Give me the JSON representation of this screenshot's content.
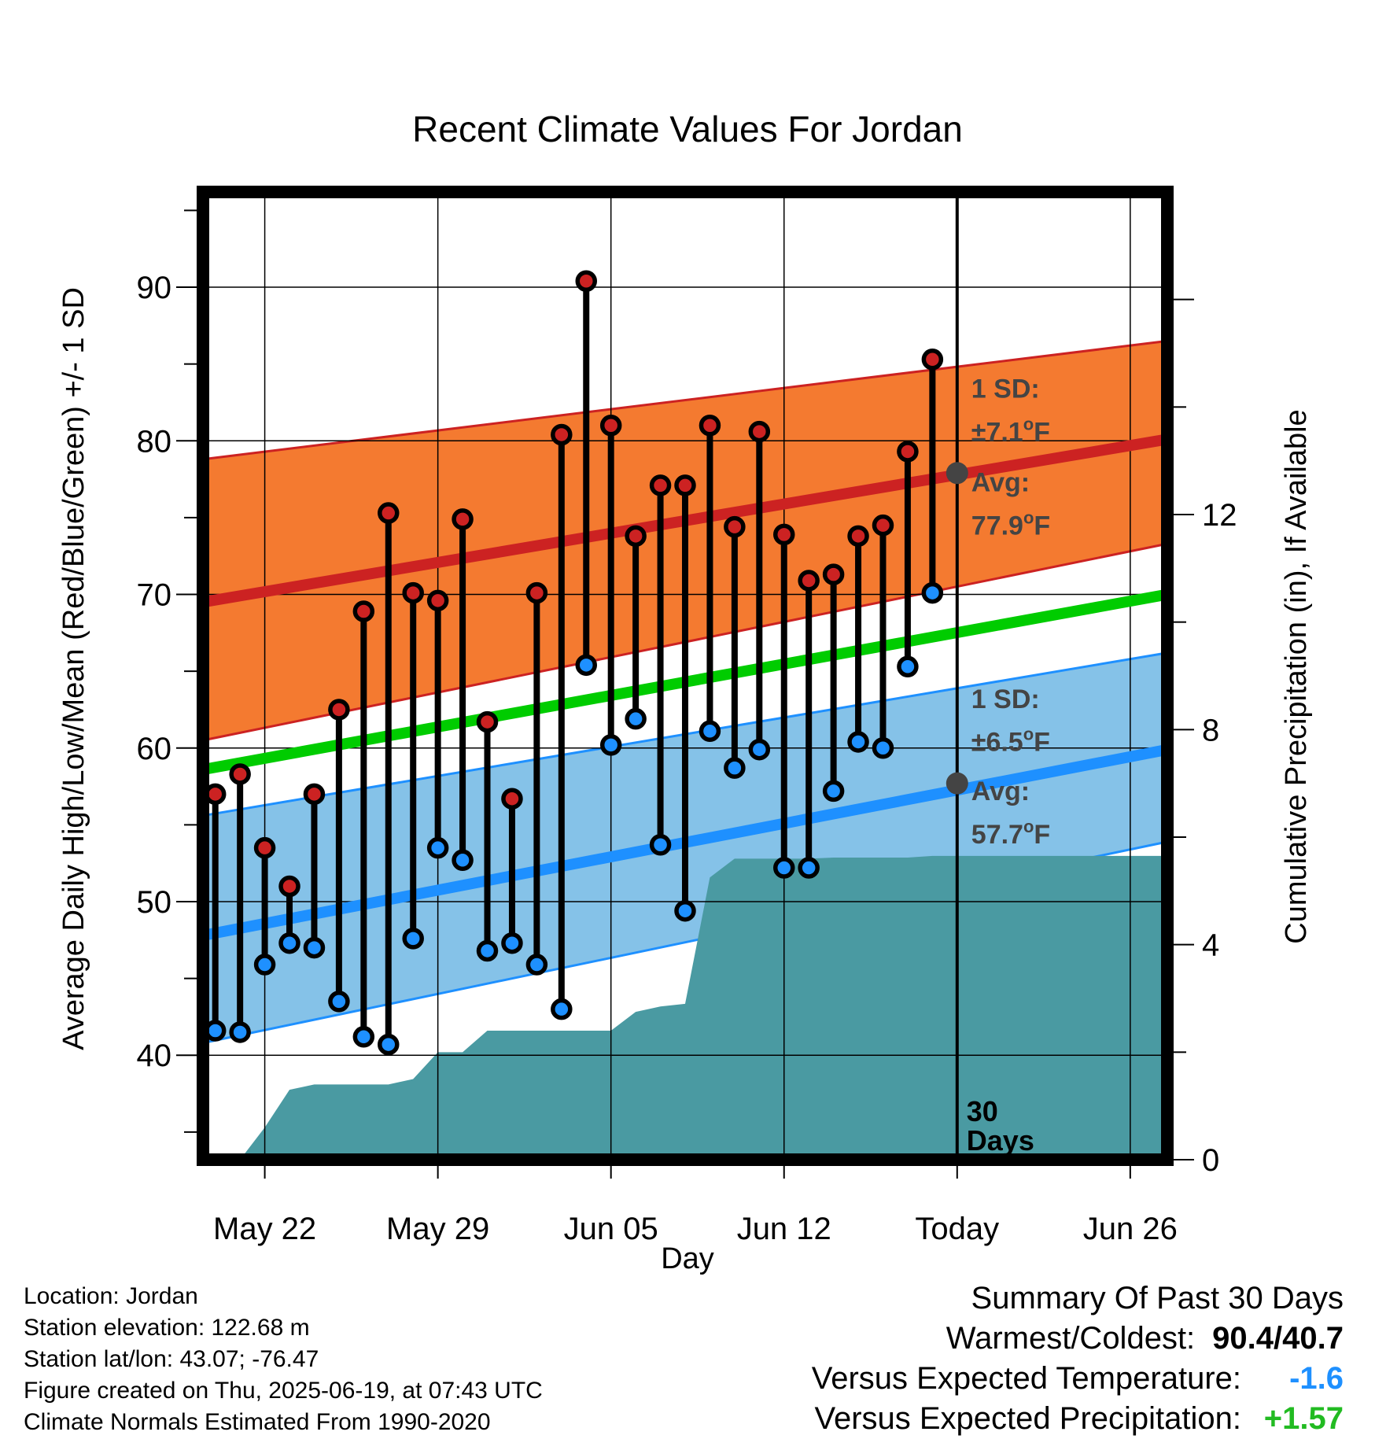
{
  "chart_data": {
    "type": "line",
    "title": "Recent Climate Values For Jordan",
    "xlabel": "Day",
    "ylabel": "Average Daily High/Low/Mean (Red/Blue/Green) +/- 1 SD",
    "y2label": "Cumulative Precipitation (in), If Available",
    "x_tick_labels": [
      "May 22",
      "May 29",
      "Jun 05",
      "Jun 12",
      "Today",
      "Jun 26"
    ],
    "x_tick_days": [
      2,
      9,
      16,
      23,
      30,
      37
    ],
    "x_range_days": [
      -0.5,
      38.5
    ],
    "ylim": [
      33.2,
      96.2
    ],
    "y_ticks": [
      40,
      50,
      60,
      70,
      80,
      90
    ],
    "y2lim": [
      0,
      18
    ],
    "y2_ticks": [
      0,
      4,
      8,
      12
    ],
    "grid": true,
    "today_day": 30,
    "normals": {
      "high_mean": {
        "start": 69.5,
        "end": 80.1
      },
      "high_sd_band": {
        "lower_start": 60.5,
        "lower_end": 73.3,
        "upper_start": 78.8,
        "upper_end": 86.5
      },
      "mean": {
        "start": 58.6,
        "end": 70.0
      },
      "low_mean": {
        "start": 47.8,
        "end": 59.9
      },
      "low_sd_band": {
        "lower_start": 40.8,
        "lower_end": 53.9,
        "upper_start": 55.6,
        "upper_end": 66.2
      }
    },
    "series": [
      {
        "name": "High",
        "x": [
          0,
          1,
          2,
          3,
          4,
          5,
          6,
          7,
          8,
          9,
          10,
          11,
          12,
          13,
          14,
          15,
          16,
          17,
          18,
          19,
          20,
          21,
          22,
          23,
          24,
          25,
          26,
          27,
          28,
          29
        ],
        "values": [
          57.0,
          58.3,
          53.5,
          51.0,
          57.0,
          62.5,
          68.9,
          75.3,
          70.1,
          69.6,
          74.9,
          61.7,
          56.7,
          70.1,
          80.4,
          90.4,
          81.0,
          73.8,
          77.1,
          77.1,
          81.0,
          74.4,
          80.6,
          73.9,
          70.9,
          71.3,
          73.8,
          74.5,
          79.3,
          85.3
        ]
      },
      {
        "name": "Low",
        "x": [
          0,
          1,
          2,
          3,
          4,
          5,
          6,
          7,
          8,
          9,
          10,
          11,
          12,
          13,
          14,
          15,
          16,
          17,
          18,
          19,
          20,
          21,
          22,
          23,
          24,
          25,
          26,
          27,
          28,
          29
        ],
        "values": [
          41.6,
          41.5,
          45.9,
          47.3,
          47.0,
          43.5,
          41.2,
          40.7,
          47.6,
          53.5,
          52.7,
          46.8,
          47.3,
          45.9,
          43.0,
          65.4,
          60.2,
          61.9,
          53.7,
          49.4,
          61.1,
          58.7,
          59.9,
          52.2,
          52.2,
          57.2,
          60.4,
          60.0,
          65.3,
          70.1
        ]
      },
      {
        "name": "Cumulative Precipitation",
        "axis": "y2",
        "x": [
          0,
          1,
          2,
          3,
          4,
          5,
          6,
          7,
          8,
          9,
          10,
          11,
          12,
          13,
          14,
          15,
          16,
          17,
          18,
          19,
          20,
          21,
          22,
          23,
          24,
          25,
          26,
          27,
          28,
          29,
          30,
          38.5
        ],
        "values": [
          0.0,
          0.0,
          0.6,
          1.3,
          1.4,
          1.4,
          1.4,
          1.4,
          1.5,
          2.0,
          2.0,
          2.4,
          2.4,
          2.4,
          2.4,
          2.4,
          2.4,
          2.75,
          2.85,
          2.9,
          5.25,
          5.6,
          5.6,
          5.6,
          5.6,
          5.62,
          5.62,
          5.62,
          5.62,
          5.65,
          5.65,
          5.65
        ]
      }
    ],
    "annotations": {
      "high_sd_line1": "1 SD:",
      "high_sd_line2": "±7.1",
      "high_sd_unit": "F",
      "high_avg_line1": "Avg:",
      "high_avg_line2": "77.9",
      "high_avg_unit": "F",
      "low_sd_line1": "1 SD:",
      "low_sd_line2": "±6.5",
      "low_sd_unit": "F",
      "low_avg_line1": "Avg:",
      "low_avg_line2": "57.7",
      "low_avg_unit": "F",
      "deg_symbol": "o",
      "days_line1": "30",
      "days_line2": "Days",
      "high_avg_today": 77.9,
      "low_avg_today": 57.7
    },
    "colors": {
      "high_band": "#f47a30",
      "high_line": "#cc2222",
      "mean_line": "#00cc00",
      "low_band": "#85c2e8",
      "low_line": "#1e90ff",
      "precip": "#4a9aa2",
      "high_dot": "#cc2222",
      "low_dot": "#1e90ff",
      "today_dot": "#444444"
    }
  },
  "info": {
    "location": "Location: Jordan",
    "elevation": "Station elevation: 122.68 m",
    "latlon": "Station lat/lon: 43.07; -76.47",
    "created": "Figure created on Thu, 2025-06-19, at 07:43 UTC",
    "normals": "Climate Normals Estimated From 1990-2020"
  },
  "summary": {
    "title": "Summary Of Past 30 Days",
    "warm_label": "Warmest/Coldest:",
    "warm_value": "90.4/40.7",
    "temp_label": "Versus Expected Temperature:",
    "temp_value": "-1.6",
    "temp_color": "#1e90ff",
    "precip_label": "Versus Expected Precipitation:",
    "precip_value": "+1.57",
    "precip_color": "#22bb22"
  }
}
